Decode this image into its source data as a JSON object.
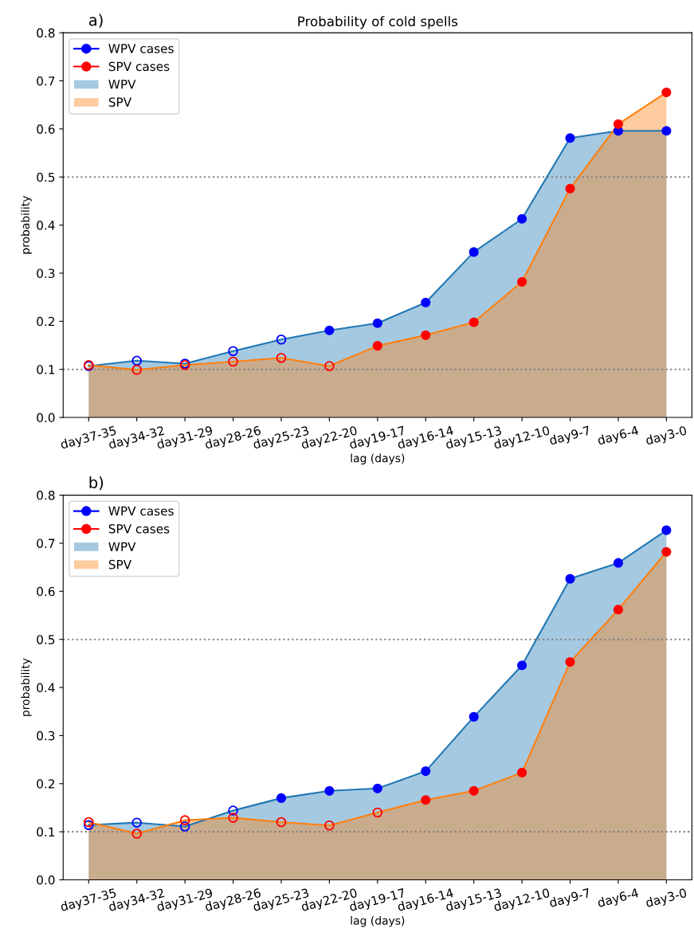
{
  "chart_data": [
    {
      "type": "area",
      "title": "Probability of cold spells",
      "annotations": [
        "a)"
      ],
      "xlabel": "lag (days)",
      "ylabel": "probability",
      "categories": [
        "day37-35",
        "day34-32",
        "day31-29",
        "day28-26",
        "day25-23",
        "day22-20",
        "day19-17",
        "day16-14",
        "day15-13",
        "day12-10",
        "day9-7",
        "day6-4",
        "day3-0"
      ],
      "ylim": [
        0,
        0.8
      ],
      "yticks": [
        {
          "value": 0,
          "label": "0.0"
        },
        0.1,
        0.2,
        0.3,
        0.4,
        0.5,
        0.6,
        0.7,
        0.8
      ],
      "grid": false,
      "legend": "top left",
      "ref_lines": [
        {
          "axis": "y",
          "value": 0.1,
          "color": "#808080",
          "line_style": "dotted"
        },
        {
          "axis": "y",
          "value": 0.5,
          "color": "#808080",
          "line_style": "dotted"
        }
      ],
      "series": [
        {
          "name": "WPV cases",
          "type": "scatter",
          "marker": "circle",
          "color": "#0000ff",
          "values": [
            null,
            null,
            null,
            null,
            null,
            0.181,
            0.196,
            0.239,
            0.344,
            0.413,
            0.581,
            0.596,
            0.596
          ]
        },
        {
          "name": "SPV cases",
          "type": "scatter",
          "marker": "circle",
          "color": "#ff0000",
          "values": [
            null,
            null,
            null,
            null,
            null,
            null,
            0.149,
            0.171,
            0.198,
            0.282,
            0.476,
            0.61,
            0.676
          ]
        },
        {
          "name": "WPV",
          "color": "#1f77b4",
          "values": [
            0.107,
            0.118,
            0.112,
            0.138,
            0.162,
            0.181,
            0.196,
            0.239,
            0.344,
            0.413,
            0.581,
            0.596,
            0.596
          ]
        },
        {
          "name": "SPV",
          "color": "#ff7f0e",
          "values": [
            0.109,
            0.099,
            0.109,
            0.116,
            0.124,
            0.107,
            0.149,
            0.171,
            0.198,
            0.282,
            0.476,
            0.61,
            0.676
          ]
        },
        {
          "type": "scatter",
          "marker": "circle",
          "color": "#0000ff",
          "values": [
            0.107,
            0.118,
            0.112,
            0.138,
            0.162,
            null,
            null,
            null,
            null,
            null,
            null,
            null,
            null
          ]
        },
        {
          "type": "scatter",
          "marker": "circle",
          "color": "#ff0000",
          "values": [
            0.109,
            0.099,
            0.109,
            0.116,
            0.124,
            0.107,
            null,
            null,
            null,
            null,
            null,
            null,
            null
          ]
        }
      ]
    },
    {
      "type": "area",
      "annotations": [
        "b)"
      ],
      "xlabel": "lag (days)",
      "ylabel": "probability",
      "categories": [
        "day37-35",
        "day34-32",
        "day31-29",
        "day28-26",
        "day25-23",
        "day22-20",
        "day19-17",
        "day16-14",
        "day15-13",
        "day12-10",
        "day9-7",
        "day6-4",
        "day3-0"
      ],
      "ylim": [
        0,
        0.8
      ],
      "yticks": [
        {
          "value": 0,
          "label": "0.0"
        },
        0.1,
        0.2,
        0.3,
        0.4,
        0.5,
        0.6,
        0.7,
        0.8
      ],
      "grid": false,
      "legend": "top left",
      "ref_lines": [
        {
          "axis": "y",
          "value": 0.1,
          "color": "#808080",
          "line_style": "dotted"
        },
        {
          "axis": "y",
          "value": 0.5,
          "color": "#808080",
          "line_style": "dotted"
        }
      ],
      "series": [
        {
          "name": "WPV cases",
          "type": "scatter",
          "marker": "circle",
          "color": "#0000ff",
          "values": [
            null,
            null,
            null,
            null,
            0.17,
            0.185,
            0.19,
            0.226,
            0.339,
            0.446,
            0.626,
            0.659,
            0.727
          ]
        },
        {
          "name": "SPV cases",
          "type": "scatter",
          "marker": "circle",
          "color": "#ff0000",
          "values": [
            null,
            null,
            null,
            null,
            null,
            null,
            null,
            0.166,
            0.185,
            0.223,
            0.453,
            0.562,
            0.682
          ]
        },
        {
          "name": "WPV",
          "color": "#1f77b4",
          "values": [
            0.114,
            0.119,
            0.111,
            0.144,
            0.17,
            0.185,
            0.19,
            0.226,
            0.339,
            0.446,
            0.626,
            0.659,
            0.727
          ]
        },
        {
          "name": "SPV",
          "color": "#ff7f0e",
          "values": [
            0.12,
            0.096,
            0.124,
            0.129,
            0.12,
            0.113,
            0.14,
            0.166,
            0.185,
            0.223,
            0.453,
            0.562,
            0.682
          ]
        },
        {
          "type": "scatter",
          "marker": "circle",
          "color": "#0000ff",
          "values": [
            0.114,
            0.119,
            0.111,
            0.144,
            null,
            null,
            null,
            null,
            null,
            null,
            null,
            null,
            null
          ]
        },
        {
          "type": "scatter",
          "marker": "circle",
          "color": "#ff0000",
          "values": [
            0.12,
            0.096,
            0.124,
            0.129,
            0.12,
            0.113,
            0.14,
            null,
            null,
            null,
            null,
            null,
            null
          ]
        }
      ]
    }
  ]
}
